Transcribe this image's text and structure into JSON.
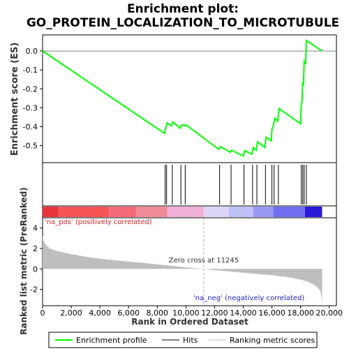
{
  "chart_data": {
    "type": "line",
    "title": "Enrichment plot:\nGO_PROTEIN_LOCALIZATION_TO_MICROTUBULE",
    "title_lines": [
      "Enrichment plot:",
      "GO_PROTEIN_LOCALIZATION_TO_MICROTUBULE"
    ],
    "es_panel": {
      "ylabel": "Enrichment score (ES)",
      "ylim": [
        -0.59,
        0.085
      ],
      "yticks": [
        0.0,
        -0.1,
        -0.2,
        -0.3,
        -0.4,
        -0.5
      ],
      "ytick_labels": [
        "0.0",
        "-0.1",
        "-0.2",
        "-0.3",
        "-0.4",
        "-0.5"
      ],
      "line_color": "#00ff00",
      "series": [
        {
          "name": "Enrichment profile",
          "x": [
            0,
            8500,
            8600,
            8700,
            9000,
            9100,
            9600,
            9700,
            9900,
            10000,
            12300,
            12400,
            13100,
            13200,
            14000,
            14100,
            14600,
            14700,
            14900,
            15000,
            15500,
            15600,
            15950,
            16000,
            16100,
            16200,
            16400,
            16500,
            18000,
            18050,
            18100,
            18150,
            18200,
            18250,
            18350,
            18400,
            19500
          ],
          "y": [
            0.0,
            -0.435,
            -0.405,
            -0.38,
            -0.395,
            -0.375,
            -0.408,
            -0.39,
            -0.395,
            -0.39,
            -0.52,
            -0.505,
            -0.535,
            -0.525,
            -0.555,
            -0.527,
            -0.545,
            -0.51,
            -0.525,
            -0.48,
            -0.51,
            -0.455,
            -0.475,
            -0.415,
            -0.395,
            -0.355,
            -0.37,
            -0.305,
            -0.385,
            -0.275,
            -0.27,
            -0.17,
            -0.175,
            -0.055,
            -0.065,
            0.055,
            0.0
          ]
        }
      ]
    },
    "hits": [
      8550,
      8650,
      9050,
      9650,
      9950,
      12350,
      13150,
      14050,
      14650,
      14950,
      15550,
      16000,
      16150,
      16450,
      18050,
      18150,
      18250,
      18400
    ],
    "heatmap_stops": [
      {
        "x": 0,
        "color": "#e8343c"
      },
      {
        "x": 1100,
        "color": "#f55555"
      },
      {
        "x": 4600,
        "color": "#f56a78"
      },
      {
        "x": 6500,
        "color": "#f08a96"
      },
      {
        "x": 8700,
        "color": "#f0b0d8"
      },
      {
        "x": 11245,
        "color": "#ddd6f8"
      },
      {
        "x": 13000,
        "color": "#c0c0f8"
      },
      {
        "x": 14700,
        "color": "#9999f5"
      },
      {
        "x": 16100,
        "color": "#6f6ff0"
      },
      {
        "x": 18300,
        "color": "#2a1ad8"
      },
      {
        "x": 19500,
        "color": "#2a1ad8"
      }
    ],
    "metric_panel": {
      "ylabel": "Ranked list metric (PreRanked)",
      "ylim": [
        -3.6,
        5.0
      ],
      "yticks": [
        4,
        2,
        0,
        -2
      ],
      "ytick_labels": [
        "4",
        "2",
        "0",
        "-2"
      ],
      "fill_color": "#bebebe",
      "x": [
        0,
        50,
        200,
        500,
        1000,
        2000,
        3000,
        4000,
        5000,
        6000,
        7000,
        8000,
        9000,
        10000,
        11245,
        12000,
        13000,
        14000,
        15000,
        16000,
        17000,
        17500,
        18000,
        18500,
        18800,
        19000,
        19200,
        19350,
        19450,
        19500
      ],
      "values": [
        3.3,
        2.8,
        2.4,
        2.0,
        1.75,
        1.45,
        1.2,
        1.0,
        0.85,
        0.72,
        0.6,
        0.45,
        0.3,
        0.15,
        0.0,
        -0.12,
        -0.25,
        -0.38,
        -0.5,
        -0.62,
        -0.78,
        -0.9,
        -1.05,
        -1.25,
        -1.45,
        -1.6,
        -1.85,
        -2.1,
        -2.6,
        -3.3
      ],
      "pos_label": "'na_pos' (positively correlated)",
      "neg_label": "'na_neg' (negatively correlated)",
      "zero_cross_label": "Zero cross at 11245",
      "zero_cross": 11245
    },
    "xlabel": "Rank in Ordered Dataset",
    "xlim": [
      0,
      20500
    ],
    "xticks": [
      0,
      2000,
      4000,
      6000,
      8000,
      10000,
      12000,
      14000,
      16000,
      18000,
      20000
    ],
    "xtick_labels": [
      "0",
      "2,000",
      "4,000",
      "6,000",
      "8,000",
      "10,000",
      "12,000",
      "14,000",
      "16,000",
      "18,000",
      "20,000"
    ],
    "legend": {
      "placement": "bottom",
      "entries": [
        {
          "label": "Enrichment profile",
          "color": "#00ff00"
        },
        {
          "label": "Hits",
          "color": "#000000"
        },
        {
          "label": "Ranking metric scores",
          "color": "#bebebe"
        }
      ]
    }
  }
}
